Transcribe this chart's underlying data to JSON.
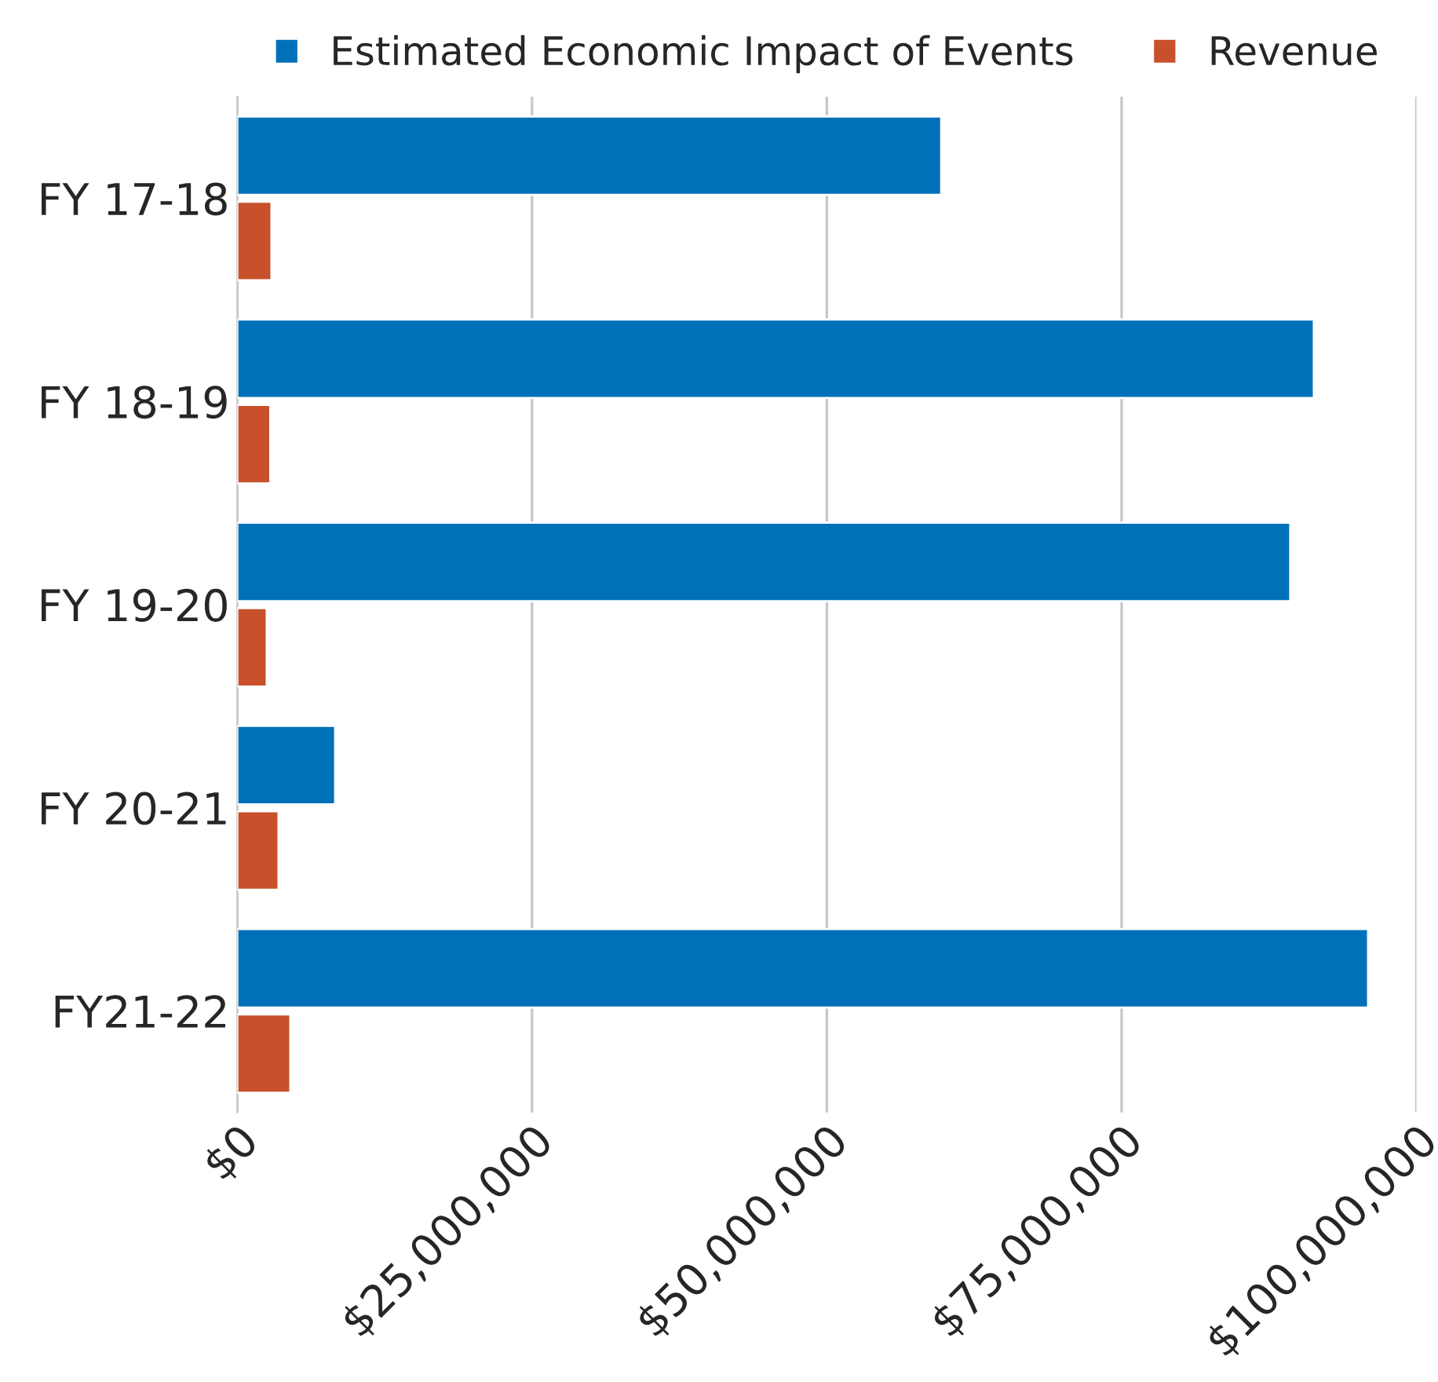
{
  "chart_data": {
    "type": "bar",
    "orientation": "horizontal",
    "categories": [
      "FY 17-18",
      "FY 18-19",
      "FY 19-20",
      "FY 20-21",
      "FY21-22"
    ],
    "series": [
      {
        "name": "Estimated Economic Impact of Events",
        "color": "#0070b8",
        "values": [
          59700000,
          91300000,
          89300000,
          8300000,
          95900000
        ]
      },
      {
        "name": "Revenue",
        "color": "#c8502a",
        "values": [
          2900000,
          2800000,
          2500000,
          3500000,
          4500000
        ]
      }
    ],
    "xlim": [
      0,
      100000000
    ],
    "xticks": [
      {
        "value": 0,
        "label": "$0"
      },
      {
        "value": 25000000,
        "label": "$25,000,000"
      },
      {
        "value": 50000000,
        "label": "$50,000,000"
      },
      {
        "value": 75000000,
        "label": "$75,000,000"
      },
      {
        "value": 100000000,
        "label": "$100,000,000"
      }
    ],
    "grid": "x",
    "legend": "top"
  }
}
